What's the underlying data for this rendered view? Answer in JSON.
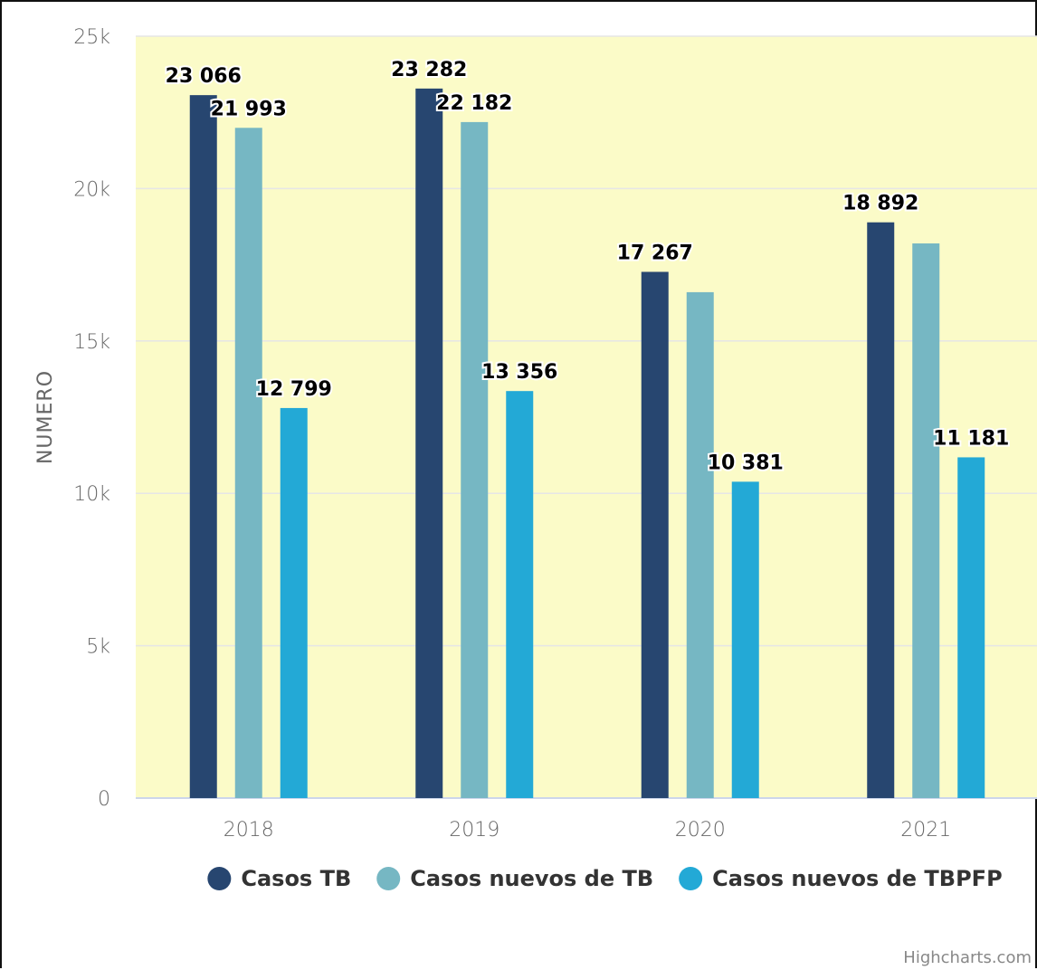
{
  "chart_data": {
    "type": "bar",
    "categories": [
      "2018",
      "2019",
      "2020",
      "2021"
    ],
    "series": [
      {
        "name": "Casos TB",
        "color": "#274670",
        "values": [
          23066,
          23282,
          17267,
          18892
        ],
        "labels": [
          "23 066",
          "23 282",
          "17 267",
          "18 892"
        ]
      },
      {
        "name": "Casos nuevos de TB",
        "color": "#76b7c3",
        "values": [
          21993,
          22182,
          16600,
          18200
        ],
        "labels": [
          "21 993",
          "22 182",
          "",
          ""
        ]
      },
      {
        "name": "Casos nuevos de TBPFP",
        "color": "#23a9d6",
        "values": [
          12799,
          13356,
          10381,
          11181
        ],
        "labels": [
          "12 799",
          "13 356",
          "10 381",
          "11 181"
        ]
      }
    ],
    "ylabel": "NUMERO",
    "xlabel": "",
    "ylim": [
      0,
      25000
    ],
    "yticks": [
      0,
      5000,
      10000,
      15000,
      20000,
      25000
    ],
    "ytick_labels": [
      "0",
      "5k",
      "10k",
      "15k",
      "20k",
      "25k"
    ],
    "plot_background": "#fbfbc8",
    "grid": true,
    "legend_position": "bottom-center",
    "credit": "Highcharts.com"
  }
}
